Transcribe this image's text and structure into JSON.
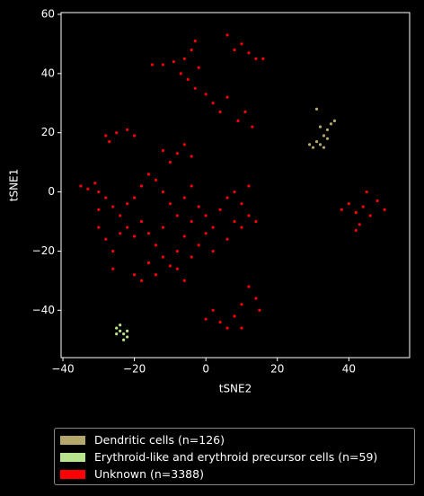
{
  "chart_data": {
    "type": "scatter",
    "x_label": "tSNE2",
    "y_label": "tSNE1",
    "xlim": [
      -40.5,
      57
    ],
    "ylim": [
      -56,
      60.6
    ],
    "xticks": [
      {
        "value": -40,
        "label": "−40"
      },
      {
        "value": -20,
        "label": "−20"
      },
      0,
      20,
      40
    ],
    "yticks": [
      {
        "value": -40,
        "label": "−40"
      },
      {
        "value": -20,
        "label": "−20"
      },
      0,
      20,
      40,
      60
    ],
    "series": [
      {
        "name": "Dendritic cells (n=126)",
        "color": "#b4a76c",
        "x": [
          30,
          31,
          32,
          33,
          34,
          35,
          36,
          32,
          33,
          29,
          34,
          31
        ],
        "values": [
          15,
          17,
          16,
          19,
          21,
          23,
          24,
          22,
          15,
          16,
          18,
          28
        ]
      },
      {
        "name": "Erythroid-like and erythroid precursor cells (n=59)",
        "color": "#b9e48e",
        "x": [
          -25,
          -24,
          -23,
          -22,
          -24,
          -23,
          -22,
          -25
        ],
        "values": [
          -46,
          -47,
          -48,
          -49,
          -45,
          -50,
          -47,
          -48
        ]
      },
      {
        "name": "Unknown (n=3388)",
        "color": "#ff0000",
        "x": [
          -35,
          -33,
          -31,
          -30,
          -28,
          -26,
          -24,
          -22,
          -20,
          -18,
          -16,
          -14,
          -12,
          -10,
          -8,
          -6,
          -4,
          -2,
          0,
          2,
          4,
          6,
          8,
          10,
          12,
          14,
          -30,
          -28,
          -26,
          -24,
          -22,
          -20,
          -18,
          -16,
          -14,
          -12,
          -10,
          -8,
          -6,
          -4,
          -2,
          0,
          -12,
          -16,
          -20,
          -18,
          -14,
          -8,
          -6,
          -4,
          2,
          6,
          10,
          12,
          8,
          -26,
          -30,
          -10,
          -8,
          -6,
          -12,
          -4,
          -28,
          -27,
          -25,
          -22,
          -20,
          -5,
          -3,
          -7,
          -2,
          -4,
          -3,
          -6,
          2,
          4,
          0,
          6,
          9,
          11,
          13,
          8,
          10,
          12,
          6,
          14,
          16,
          -15,
          -12,
          -9,
          40,
          42,
          44,
          46,
          48,
          43,
          45,
          50,
          38,
          42,
          12,
          14,
          15,
          10,
          2,
          4,
          6,
          8,
          0,
          10
        ],
        "values": [
          2,
          1,
          3,
          0,
          -2,
          -5,
          -8,
          -12,
          -15,
          -10,
          -14,
          -18,
          -22,
          -25,
          -20,
          -15,
          -10,
          -5,
          -8,
          -12,
          -6,
          -2,
          0,
          -4,
          -8,
          -10,
          -12,
          -16,
          -20,
          -14,
          -4,
          -2,
          2,
          6,
          4,
          0,
          -4,
          -8,
          -2,
          2,
          -18,
          -14,
          -12,
          -24,
          -28,
          -30,
          -28,
          -26,
          -30,
          -22,
          -20,
          -16,
          -12,
          2,
          -10,
          -26,
          -6,
          10,
          13,
          16,
          14,
          12,
          19,
          17,
          20,
          21,
          19,
          38,
          35,
          40,
          42,
          48,
          51,
          45,
          30,
          27,
          33,
          32,
          24,
          27,
          22,
          48,
          50,
          47,
          53,
          45,
          45,
          43,
          43,
          44,
          -4,
          -7,
          -5,
          -8,
          -3,
          -11,
          0,
          -6,
          -6,
          -13,
          -32,
          -36,
          -40,
          -38,
          -40,
          -44,
          -46,
          -42,
          -43,
          -46
        ]
      }
    ]
  }
}
